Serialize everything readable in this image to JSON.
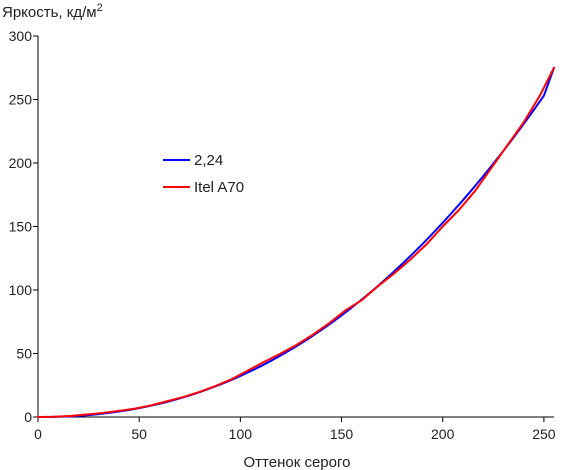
{
  "chart_data": {
    "type": "line",
    "ylabel": "Яркость, кд/м",
    "ylabel_superscript": "2",
    "xlabel": "Оттенок серого",
    "xlim": [
      0,
      255
    ],
    "ylim": [
      0,
      300
    ],
    "xticks": [
      0,
      50,
      100,
      150,
      200,
      250
    ],
    "yticks": [
      0,
      50,
      100,
      150,
      200,
      250,
      300
    ],
    "grid": false,
    "legend_position": "upper-left-center",
    "series": [
      {
        "name": "2,24",
        "color": "#0000ff",
        "gamma": 2.24,
        "max": 275,
        "x": [
          0,
          5,
          10,
          15,
          20,
          25,
          30,
          35,
          40,
          45,
          50,
          55,
          60,
          65,
          70,
          75,
          80,
          85,
          90,
          95,
          100,
          105,
          110,
          115,
          120,
          125,
          130,
          135,
          140,
          145,
          150,
          155,
          160,
          165,
          170,
          175,
          180,
          185,
          190,
          195,
          200,
          205,
          210,
          215,
          220,
          225,
          230,
          235,
          240,
          245,
          250,
          255
        ],
        "y": [
          0,
          0.04,
          0.2,
          0.5,
          0.9,
          1.5,
          2.3,
          3.2,
          4.3,
          5.5,
          7.0,
          8.6,
          10.4,
          12.4,
          14.6,
          17.0,
          19.6,
          22.5,
          25.5,
          28.8,
          32.3,
          36.0,
          39.9,
          44.1,
          48.5,
          53.1,
          58.0,
          63.1,
          68.5,
          74.1,
          80.0,
          86.1,
          92.5,
          99.1,
          106.0,
          113.2,
          120.6,
          128.3,
          136.2,
          144.4,
          152.9,
          161.7,
          170.7,
          180.0,
          189.6,
          199.5,
          209.6,
          220.0,
          230.7,
          241.7,
          253.0,
          275.0
        ]
      },
      {
        "name": "Itel A70",
        "color": "#ff0000",
        "x": [
          0,
          8,
          16,
          24,
          32,
          40,
          48,
          56,
          64,
          72,
          80,
          88,
          96,
          104,
          112,
          120,
          128,
          136,
          144,
          152,
          160,
          168,
          176,
          184,
          192,
          200,
          208,
          216,
          224,
          232,
          240,
          248,
          255
        ],
        "y": [
          0,
          0.2,
          0.8,
          2.0,
          3.2,
          4.8,
          6.6,
          9.2,
          12.5,
          15.8,
          19.8,
          24.6,
          30.0,
          36.8,
          43.6,
          50.0,
          57.0,
          65.0,
          74.0,
          84.0,
          92.0,
          103.0,
          113.0,
          124.0,
          136.0,
          150.0,
          163.0,
          178.0,
          196.0,
          214.0,
          232.0,
          253.0,
          275.0
        ]
      }
    ]
  }
}
